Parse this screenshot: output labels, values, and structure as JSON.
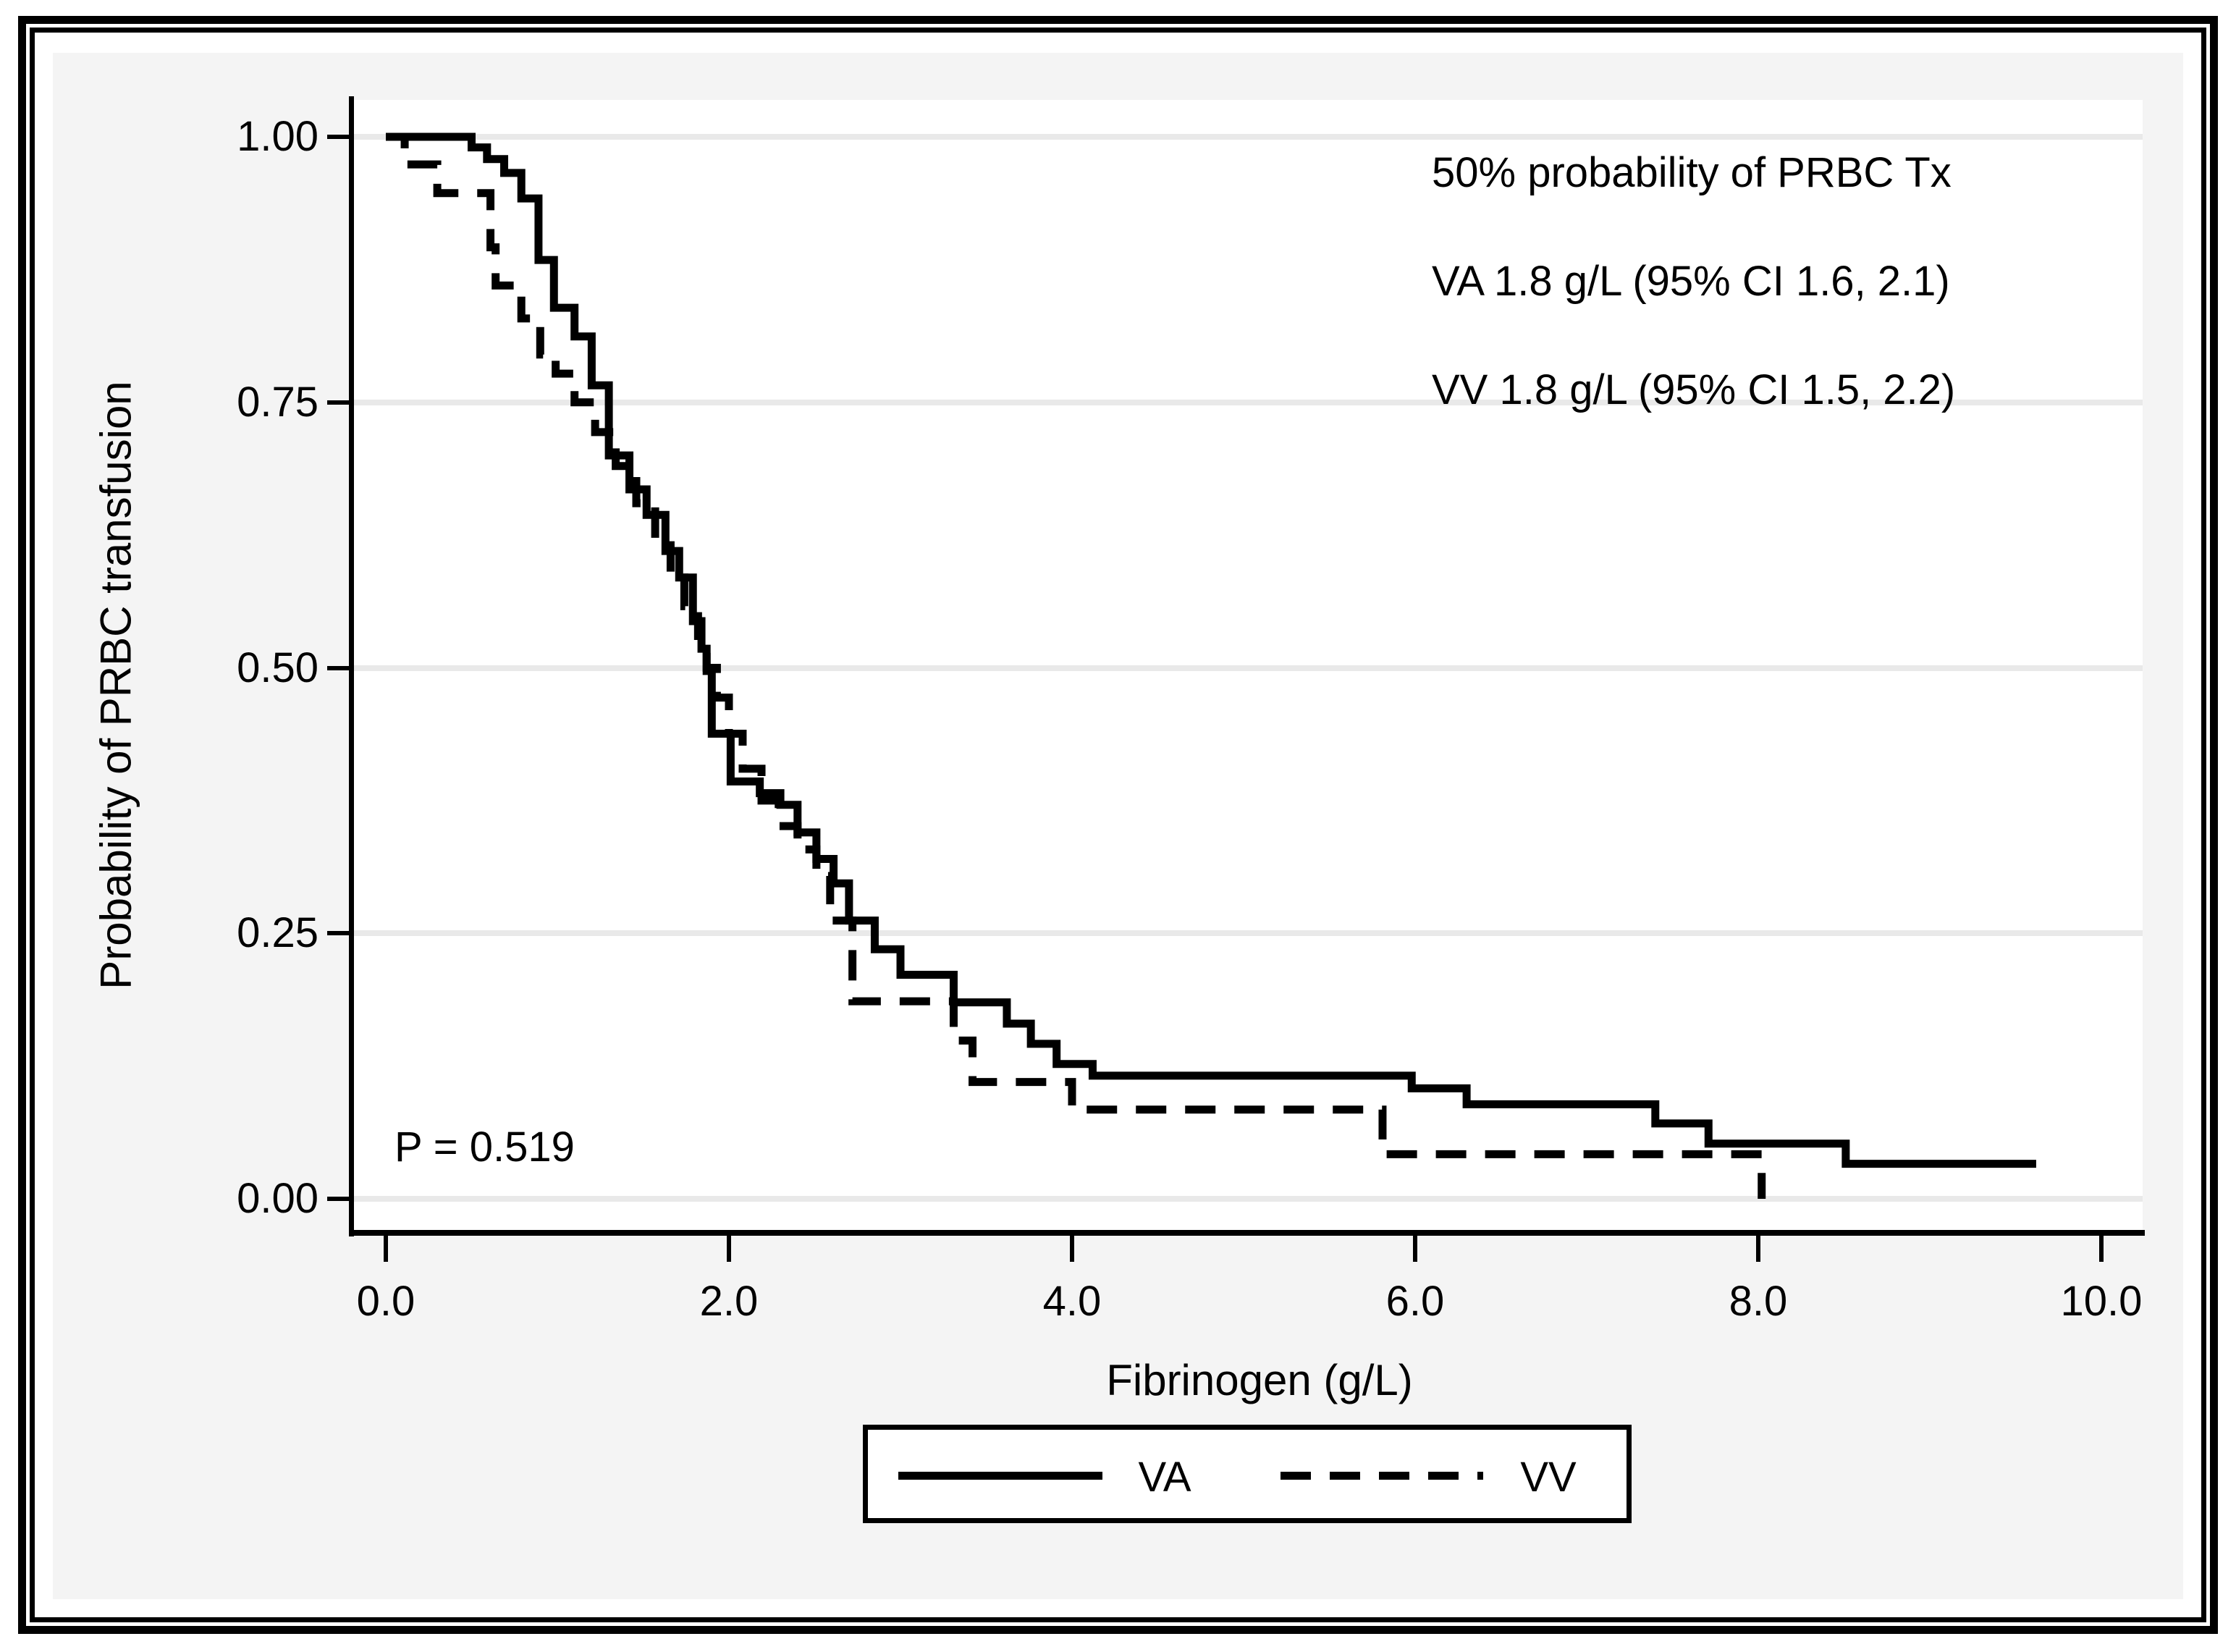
{
  "figure": {
    "p_value_label": "P = 0.519",
    "annotation": {
      "line1": "50% probability of PRBC Tx",
      "line2": "VA 1.8 g/L (95% CI 1.6, 2.1)",
      "line3": "VV 1.8 g/L (95% CI 1.5, 2.2)"
    },
    "colors": {
      "frame": "#000000",
      "panel_background": "#f4f4f4",
      "plot_background": "#ffffff",
      "gridline": "#e9e9e9",
      "curve": "#000000"
    }
  },
  "chart_data": {
    "type": "line",
    "subtype": "kaplan-meier-step",
    "title": "",
    "xlabel": "Fibrinogen (g/L)",
    "ylabel": "Probability of PRBC transfusion",
    "xlim": [
      0,
      10.3
    ],
    "ylim": [
      0,
      1.0
    ],
    "grid": "horizontal-only",
    "x_ticks": [
      {
        "value": 0.0,
        "label": "0.0"
      },
      {
        "value": 2.0,
        "label": "2.0"
      },
      {
        "value": 4.0,
        "label": "4.0"
      },
      {
        "value": 6.0,
        "label": "6.0"
      },
      {
        "value": 8.0,
        "label": "8.0"
      },
      {
        "value": 10.0,
        "label": "10.0"
      }
    ],
    "y_ticks": [
      {
        "value": 0.0,
        "label": "0.00"
      },
      {
        "value": 0.25,
        "label": "0.25"
      },
      {
        "value": 0.5,
        "label": "0.50"
      },
      {
        "value": 0.75,
        "label": "0.75"
      },
      {
        "value": 1.0,
        "label": "1.00"
      }
    ],
    "legend": {
      "position": "bottom-center",
      "items": [
        {
          "name": "VA",
          "style": "solid"
        },
        {
          "name": "VV",
          "style": "dashed"
        }
      ]
    },
    "series": [
      {
        "name": "VA",
        "style": "solid",
        "start": {
          "x": 0.0,
          "p": 1.0
        },
        "end_x": 9.62,
        "steps": [
          [
            0.5,
            0.99
          ],
          [
            0.59,
            0.979
          ],
          [
            0.69,
            0.966
          ],
          [
            0.79,
            0.942
          ],
          [
            0.89,
            0.884
          ],
          [
            0.98,
            0.839
          ],
          [
            1.1,
            0.812
          ],
          [
            1.2,
            0.766
          ],
          [
            1.3,
            0.7
          ],
          [
            1.42,
            0.668
          ],
          [
            1.52,
            0.644
          ],
          [
            1.63,
            0.61
          ],
          [
            1.71,
            0.585
          ],
          [
            1.79,
            0.544
          ],
          [
            1.84,
            0.518
          ],
          [
            1.87,
            0.497
          ],
          [
            1.9,
            0.438
          ],
          [
            2.01,
            0.393
          ],
          [
            2.18,
            0.382
          ],
          [
            2.3,
            0.371
          ],
          [
            2.4,
            0.345
          ],
          [
            2.51,
            0.32
          ],
          [
            2.61,
            0.297
          ],
          [
            2.7,
            0.262
          ],
          [
            2.85,
            0.235
          ],
          [
            3.0,
            0.211
          ],
          [
            3.31,
            0.185
          ],
          [
            3.62,
            0.165
          ],
          [
            3.76,
            0.146
          ],
          [
            3.91,
            0.127
          ],
          [
            4.12,
            0.116
          ],
          [
            5.98,
            0.104
          ],
          [
            6.3,
            0.089
          ],
          [
            7.4,
            0.071
          ],
          [
            7.71,
            0.052
          ],
          [
            8.51,
            0.033
          ]
        ]
      },
      {
        "name": "VV",
        "style": "dashed",
        "start": {
          "x": 0.0,
          "p": 1.0
        },
        "end_x": 8.02,
        "steps": [
          [
            0.11,
            0.974
          ],
          [
            0.3,
            0.947
          ],
          [
            0.61,
            0.896
          ],
          [
            0.64,
            0.86
          ],
          [
            0.79,
            0.829
          ],
          [
            0.9,
            0.795
          ],
          [
            0.99,
            0.777
          ],
          [
            1.1,
            0.75
          ],
          [
            1.22,
            0.722
          ],
          [
            1.34,
            0.69
          ],
          [
            1.46,
            0.655
          ],
          [
            1.57,
            0.62
          ],
          [
            1.66,
            0.585
          ],
          [
            1.74,
            0.558
          ],
          [
            1.82,
            0.53
          ],
          [
            1.87,
            0.5
          ],
          [
            1.93,
            0.472
          ],
          [
            2.0,
            0.438
          ],
          [
            2.08,
            0.405
          ],
          [
            2.19,
            0.375
          ],
          [
            2.29,
            0.351
          ],
          [
            2.4,
            0.329
          ],
          [
            2.51,
            0.304
          ],
          [
            2.59,
            0.262
          ],
          [
            2.72,
            0.186
          ],
          [
            3.31,
            0.149
          ],
          [
            3.42,
            0.11
          ],
          [
            4.0,
            0.084
          ],
          [
            5.81,
            0.042
          ],
          [
            8.02,
            0.0
          ]
        ]
      }
    ]
  }
}
